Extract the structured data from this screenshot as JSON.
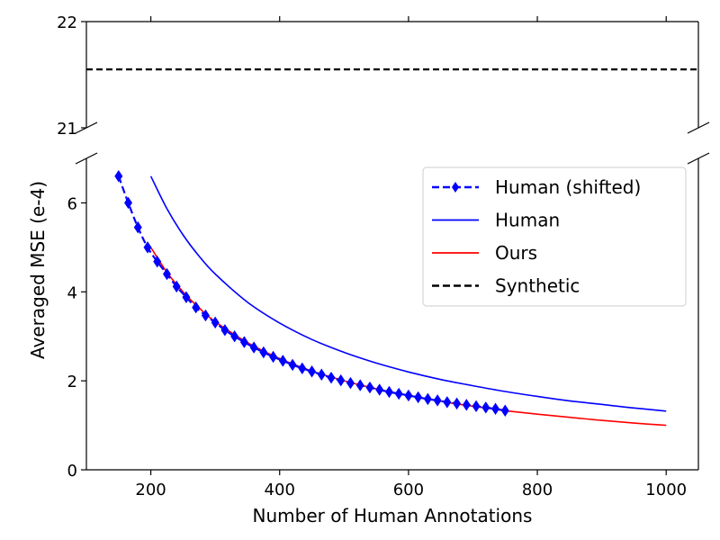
{
  "chart_data": {
    "type": "line",
    "title": "",
    "xlabel": "Number of Human Annotations",
    "ylabel": "Averaged MSE (e-4)",
    "xlim": [
      100,
      1050
    ],
    "broken_y_axis": true,
    "ylim_top": [
      21,
      22
    ],
    "ylim_bottom": [
      0,
      7
    ],
    "x_ticks": [
      200,
      400,
      600,
      800,
      1000
    ],
    "y_ticks_top": [
      21,
      22
    ],
    "y_ticks_bottom": [
      0,
      2,
      4,
      6
    ],
    "grid": false,
    "legend_position": "upper right",
    "series": [
      {
        "name": "Human (shifted)",
        "style": "dashed",
        "marker": "diamond",
        "color": "#0000ff",
        "x": [
          150,
          165,
          180,
          195,
          210,
          225,
          240,
          255,
          270,
          285,
          300,
          315,
          330,
          345,
          360,
          375,
          390,
          405,
          420,
          435,
          450,
          465,
          480,
          495,
          510,
          525,
          540,
          555,
          570,
          585,
          600,
          615,
          630,
          645,
          660,
          675,
          690,
          705,
          720,
          735,
          750
        ],
        "y": [
          6.6,
          6.0,
          5.45,
          5.0,
          4.68,
          4.4,
          4.12,
          3.88,
          3.65,
          3.47,
          3.31,
          3.14,
          3.0,
          2.87,
          2.75,
          2.64,
          2.54,
          2.45,
          2.36,
          2.28,
          2.21,
          2.14,
          2.07,
          2.01,
          1.95,
          1.9,
          1.85,
          1.8,
          1.75,
          1.71,
          1.67,
          1.63,
          1.59,
          1.56,
          1.52,
          1.49,
          1.46,
          1.43,
          1.4,
          1.37,
          1.33
        ]
      },
      {
        "name": "Human",
        "style": "solid",
        "marker": "none",
        "color": "#0000ff",
        "x": [
          200,
          225,
          250,
          275,
          300,
          350,
          400,
          450,
          500,
          550,
          600,
          650,
          700,
          750,
          800,
          850,
          900,
          950,
          1000
        ],
        "y": [
          6.6,
          5.87,
          5.28,
          4.8,
          4.4,
          3.77,
          3.3,
          2.93,
          2.64,
          2.4,
          2.2,
          2.03,
          1.89,
          1.76,
          1.65,
          1.55,
          1.47,
          1.39,
          1.32
        ]
      },
      {
        "name": "Ours",
        "style": "solid",
        "marker": "none",
        "color": "#ff0000",
        "x": [
          200,
          225,
          250,
          275,
          300,
          350,
          400,
          450,
          500,
          550,
          600,
          650,
          700,
          750,
          800,
          850,
          900,
          950,
          1000
        ],
        "y": [
          5.0,
          4.44,
          4.0,
          3.64,
          3.33,
          2.86,
          2.5,
          2.22,
          2.0,
          1.82,
          1.67,
          1.54,
          1.43,
          1.33,
          1.25,
          1.18,
          1.11,
          1.05,
          1.0
        ]
      },
      {
        "name": "Synthetic",
        "style": "dashed",
        "marker": "none",
        "color": "#000000",
        "x": [
          100,
          1050
        ],
        "y": [
          21.55,
          21.55
        ]
      }
    ]
  }
}
